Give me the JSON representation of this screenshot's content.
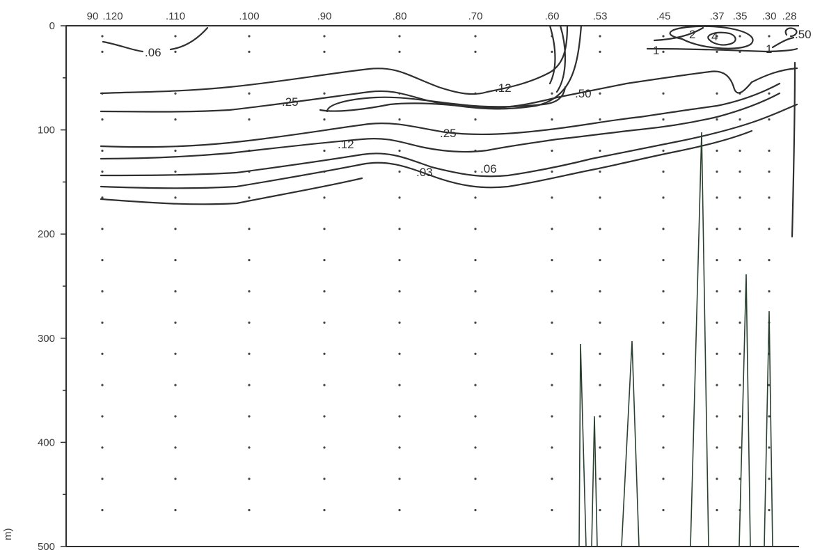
{
  "chart_data": {
    "type": "contour",
    "title": "",
    "ylabel": "m)",
    "y_axis": {
      "ticks": [
        0,
        100,
        200,
        300,
        400,
        500
      ],
      "tick_labels": [
        "0",
        "100",
        "200",
        "300",
        "400",
        "500"
      ],
      "minor_ticks": [
        50,
        150,
        250,
        350,
        450
      ],
      "range": [
        0,
        500
      ],
      "direction": "down"
    },
    "stations": [
      {
        "label": "90",
        "position": 90
      },
      {
        "label": ".120",
        "position": 120
      },
      {
        "label": ".110",
        "position": 110
      },
      {
        "label": ".100",
        "position": 100
      },
      {
        "label": ".90",
        "position": 90
      },
      {
        "label": ".80",
        "position": 80
      },
      {
        "label": ".70",
        "position": 70
      },
      {
        "label": ".60",
        "position": 60
      },
      {
        "label": ".53",
        "position": 53
      },
      {
        "label": ".45",
        "position": 45
      },
      {
        "label": ".37",
        "position": 37
      },
      {
        "label": ".35",
        "position": 35
      },
      {
        "label": ".30",
        "position": 30
      },
      {
        "label": ".28",
        "position": 28
      }
    ],
    "contour_labels": [
      ".06",
      ".12",
      ".25",
      ".50",
      ".12",
      ".25",
      ".03",
      ".06",
      "1",
      "2",
      "4",
      "1",
      ".50"
    ],
    "sample_depths": [
      10,
      25,
      65,
      90,
      120,
      140,
      165,
      195,
      225,
      255,
      285,
      315,
      345,
      375,
      405,
      435,
      465
    ]
  }
}
